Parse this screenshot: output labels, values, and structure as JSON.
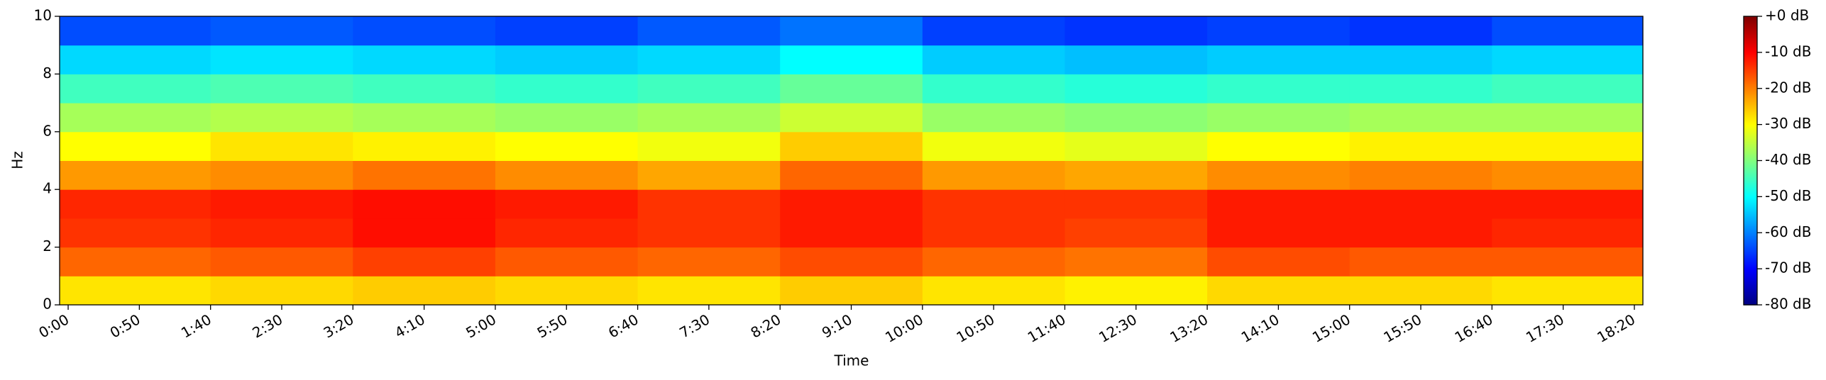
{
  "chart_data": {
    "type": "heatmap",
    "x_label": "Time",
    "y_label": "Hz",
    "colormap": "jet",
    "xlim": [
      -6,
      1106
    ],
    "xticks": [
      {
        "value": 0,
        "label": "0:00"
      },
      {
        "value": 50,
        "label": "0:50"
      },
      {
        "value": 100,
        "label": "1:40"
      },
      {
        "value": 150,
        "label": "2:30"
      },
      {
        "value": 200,
        "label": "3:20"
      },
      {
        "value": 250,
        "label": "4:10"
      },
      {
        "value": 300,
        "label": "5:00"
      },
      {
        "value": 350,
        "label": "5:50"
      },
      {
        "value": 400,
        "label": "6:40"
      },
      {
        "value": 450,
        "label": "7:30"
      },
      {
        "value": 500,
        "label": "8:20"
      },
      {
        "value": 550,
        "label": "9:10"
      },
      {
        "value": 600,
        "label": "10:00"
      },
      {
        "value": 650,
        "label": "10:50"
      },
      {
        "value": 700,
        "label": "11:40"
      },
      {
        "value": 750,
        "label": "12:30"
      },
      {
        "value": 800,
        "label": "13:20"
      },
      {
        "value": 850,
        "label": "14:10"
      },
      {
        "value": 900,
        "label": "15:00"
      },
      {
        "value": 950,
        "label": "15:50"
      },
      {
        "value": 1000,
        "label": "16:40"
      },
      {
        "value": 1050,
        "label": "17:30"
      },
      {
        "value": 1100,
        "label": "18:20"
      }
    ],
    "ylim": [
      0,
      10
    ],
    "yticks": [
      0,
      2,
      4,
      6,
      8,
      10
    ],
    "clim": [
      -80,
      0
    ],
    "cticks": [
      {
        "value": 0,
        "label": "+0 dB"
      },
      {
        "value": -10,
        "label": "-10 dB"
      },
      {
        "value": -20,
        "label": "-20 dB"
      },
      {
        "value": -30,
        "label": "-30 dB"
      },
      {
        "value": -40,
        "label": "-40 dB"
      },
      {
        "value": -50,
        "label": "-50 dB"
      },
      {
        "value": -60,
        "label": "-60 dB"
      },
      {
        "value": -70,
        "label": "-70 dB"
      },
      {
        "value": -80,
        "label": "-80 dB"
      }
    ],
    "x_bins": [
      -6,
      100,
      200,
      300,
      400,
      500,
      600,
      700,
      800,
      900,
      1000,
      1106
    ],
    "y_bins": [
      0,
      1,
      2,
      3,
      4,
      5,
      6,
      7,
      8,
      9,
      10
    ],
    "values": [
      [
        -28,
        -27,
        -26,
        -27,
        -28,
        -26,
        -28,
        -29,
        -27,
        -27,
        -28
      ],
      [
        -18,
        -17,
        -15,
        -17,
        -18,
        -16,
        -18,
        -19,
        -16,
        -17,
        -17
      ],
      [
        -14,
        -13,
        -11,
        -13,
        -14,
        -12,
        -14,
        -15,
        -12,
        -12,
        -13
      ],
      [
        -13,
        -12,
        -11,
        -12,
        -14,
        -12,
        -14,
        -14,
        -12,
        -12,
        -12
      ],
      [
        -22,
        -21,
        -19,
        -21,
        -23,
        -18,
        -22,
        -23,
        -21,
        -20,
        -21
      ],
      [
        -30,
        -28,
        -29,
        -30,
        -31,
        -26,
        -31,
        -32,
        -30,
        -29,
        -29
      ],
      [
        -37,
        -36,
        -37,
        -38,
        -37,
        -34,
        -38,
        -39,
        -38,
        -37,
        -37
      ],
      [
        -45,
        -44,
        -45,
        -46,
        -45,
        -42,
        -46,
        -47,
        -46,
        -46,
        -45
      ],
      [
        -53,
        -52,
        -53,
        -54,
        -53,
        -50,
        -54,
        -55,
        -54,
        -54,
        -53
      ],
      [
        -64,
        -63,
        -64,
        -65,
        -63,
        -61,
        -65,
        -66,
        -65,
        -66,
        -64
      ]
    ]
  }
}
